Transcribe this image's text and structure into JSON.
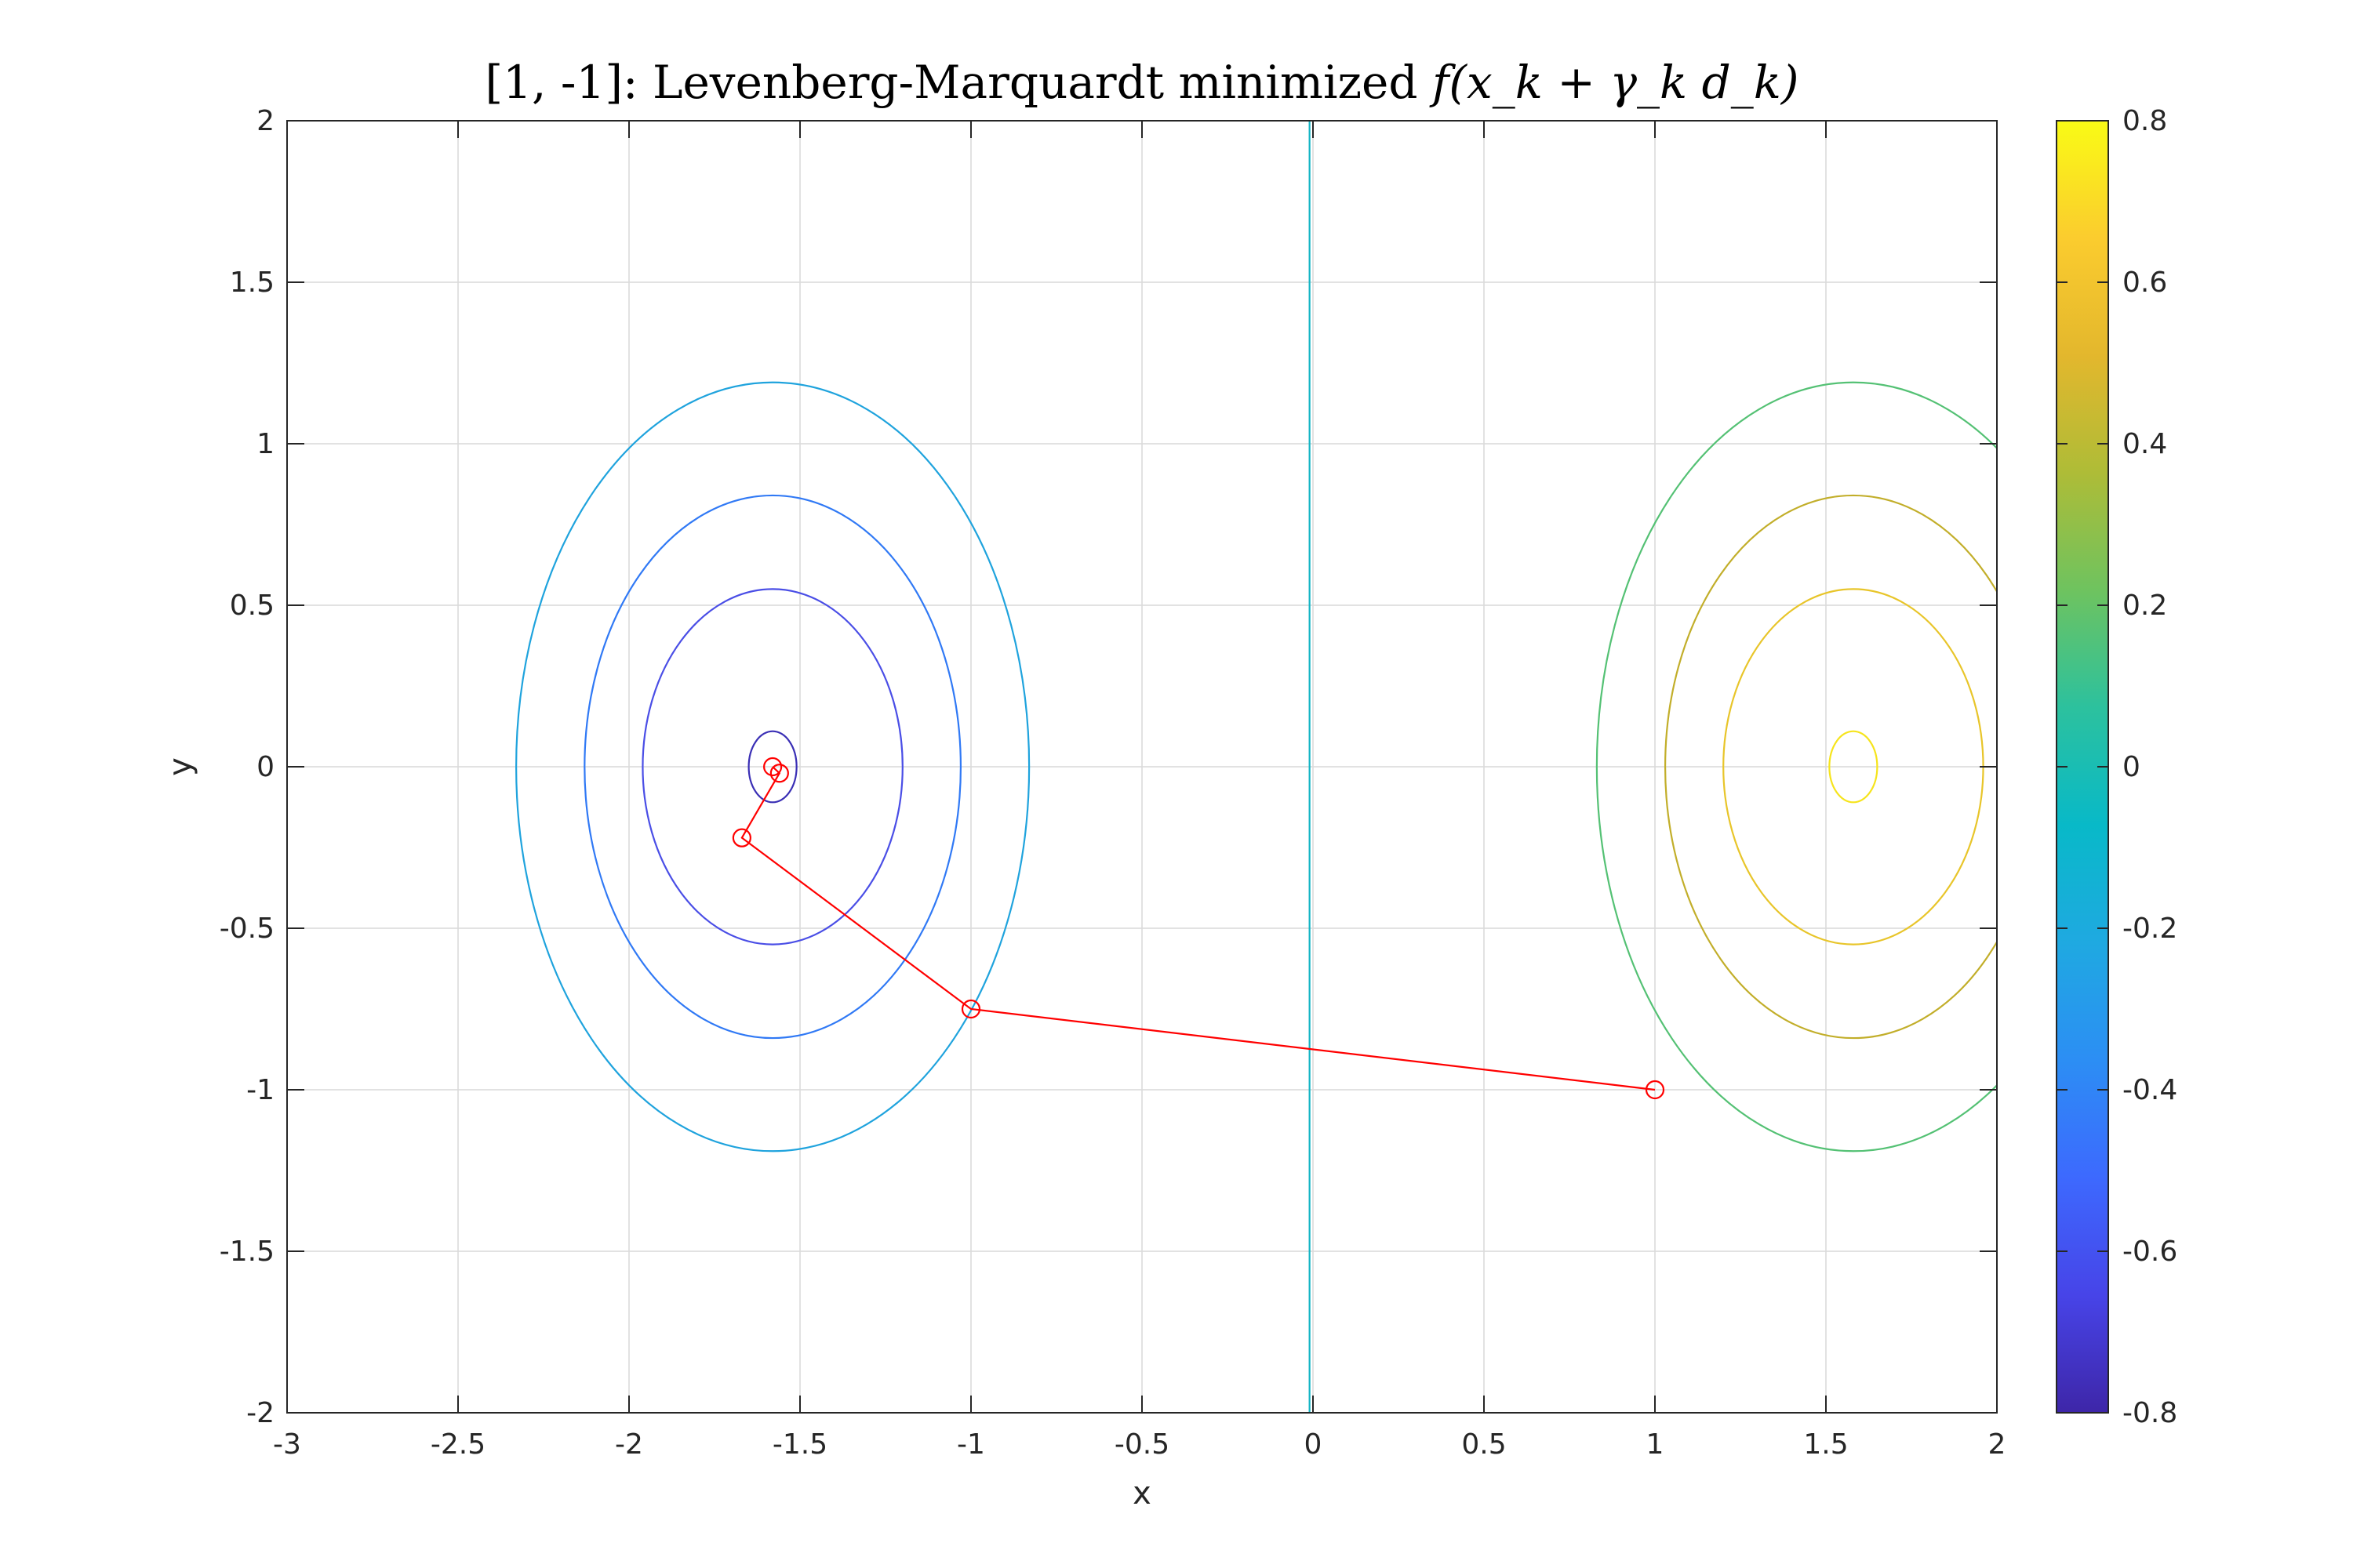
{
  "chart_data": {
    "type": "contour",
    "title_prefix": "[1, -1]: Levenberg-Marquardt minimized ",
    "title_math": "f(x_k + γ_k d_k)",
    "xlabel": "x",
    "ylabel": "y",
    "xlim": [
      -3,
      2
    ],
    "ylim": [
      -2,
      2
    ],
    "xticks": [
      -3,
      -2.5,
      -2,
      -1.5,
      -1,
      -0.5,
      0,
      0.5,
      1,
      1.5,
      2
    ],
    "xtick_labels": [
      "-3",
      "-2.5",
      "-2",
      "-1.5",
      "-1",
      "-0.5",
      "0",
      "0.5",
      "1",
      "1.5",
      "2"
    ],
    "yticks": [
      -2,
      -1.5,
      -1,
      -0.5,
      0,
      0.5,
      1,
      1.5,
      2
    ],
    "ytick_labels": [
      "-2",
      "-1.5",
      "-1",
      "-0.5",
      "0",
      "0.5",
      "1",
      "1.5",
      "2"
    ],
    "grid": true,
    "contour_levels": [
      {
        "level": -0.75,
        "color": "#3a2fb5",
        "center": [
          -1.58,
          0
        ],
        "rx": 0.07,
        "ry": 0.11
      },
      {
        "level": -0.6,
        "color": "#4a4ee6",
        "center": [
          -1.58,
          0
        ],
        "rx": 0.38,
        "ry": 0.55
      },
      {
        "level": -0.45,
        "color": "#3079f5",
        "center": [
          -1.58,
          0
        ],
        "rx": 0.55,
        "ry": 0.84
      },
      {
        "level": -0.2,
        "color": "#1fa3dd",
        "center": [
          -1.58,
          0
        ],
        "rx": 0.75,
        "ry": 1.19
      },
      {
        "level": 0,
        "color": "#12b5c4",
        "vertical_x": -0.01
      },
      {
        "level": 0.2,
        "color": "#54c174",
        "center": [
          1.58,
          0
        ],
        "rx": 0.75,
        "ry": 1.19
      },
      {
        "level": 0.45,
        "color": "#c2ae2a",
        "center": [
          1.58,
          0
        ],
        "rx": 0.55,
        "ry": 0.84
      },
      {
        "level": 0.6,
        "color": "#e8c52a",
        "center": [
          1.58,
          0
        ],
        "rx": 0.38,
        "ry": 0.55
      },
      {
        "level": 0.75,
        "color": "#f6e41c",
        "center": [
          1.58,
          0
        ],
        "rx": 0.07,
        "ry": 0.11
      }
    ],
    "path": {
      "color": "#ff0000",
      "points": [
        [
          1,
          -1
        ],
        [
          -1,
          -0.75
        ],
        [
          -1.67,
          -0.22
        ],
        [
          -1.56,
          -0.02
        ],
        [
          -1.58,
          0
        ]
      ]
    },
    "colorbar": {
      "limits": [
        -0.8,
        0.8
      ],
      "ticks": [
        -0.8,
        -0.6,
        -0.4,
        -0.2,
        0,
        0.2,
        0.4,
        0.6,
        0.8
      ],
      "tick_labels": [
        "-0.8",
        "-0.6",
        "-0.4",
        "-0.2",
        "0",
        "0.2",
        "0.4",
        "0.6",
        "0.8"
      ],
      "colormap": [
        "#3e26a8",
        "#4744e8",
        "#3d69fe",
        "#2c8ef4",
        "#1fa9e1",
        "#08b9c8",
        "#2cc19e",
        "#6ec35f",
        "#aebc37",
        "#e3b72d",
        "#fbcc2e",
        "#f9fb15"
      ]
    }
  }
}
